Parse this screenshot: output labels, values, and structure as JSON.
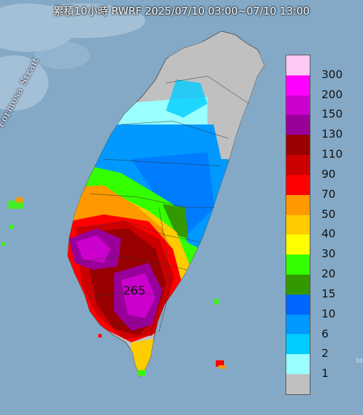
{
  "map": {
    "title": "累積10小時 RWRF 2025/07/10 03:00~07/10 13:00",
    "strait_label": "Formosa Strait",
    "peak_value": "265",
    "corner_mark": "10"
  },
  "legend": {
    "unit": "",
    "items": [
      {
        "label": "300",
        "color": "#ffc8f5"
      },
      {
        "label": "200",
        "color": "#ff00ff"
      },
      {
        "label": "150",
        "color": "#cc00cc"
      },
      {
        "label": "130",
        "color": "#990099"
      },
      {
        "label": "110",
        "color": "#990000"
      },
      {
        "label": "90",
        "color": "#cc0000"
      },
      {
        "label": "70",
        "color": "#ff0000"
      },
      {
        "label": "50",
        "color": "#ff9900"
      },
      {
        "label": "40",
        "color": "#ffcc00"
      },
      {
        "label": "30",
        "color": "#ffff00"
      },
      {
        "label": "20",
        "color": "#33ff00"
      },
      {
        "label": "15",
        "color": "#339900"
      },
      {
        "label": "10",
        "color": "#0066ff"
      },
      {
        "label": "6",
        "color": "#0099ff"
      },
      {
        "label": "2",
        "color": "#00ccff"
      },
      {
        "label": "1",
        "color": "#99ffff"
      },
      {
        "label": "",
        "color": "#c0c0c0"
      }
    ]
  }
}
